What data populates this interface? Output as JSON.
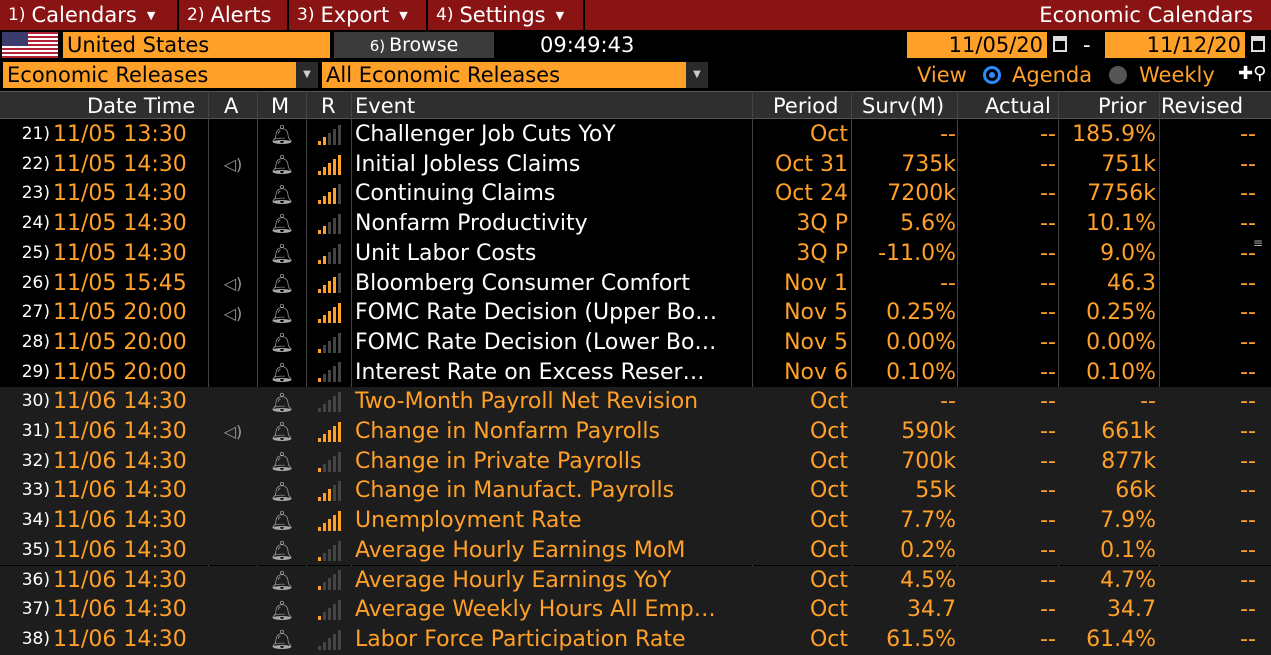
{
  "menu": [
    {
      "num": "1)",
      "label": "Calendars"
    },
    {
      "num": "2)",
      "label": "Alerts"
    },
    {
      "num": "3)",
      "label": "Export"
    },
    {
      "num": "4)",
      "label": "Settings"
    }
  ],
  "window_title": "Economic Calendars",
  "country": "United States",
  "browse": {
    "num": "6)",
    "label": "Browse"
  },
  "clock": "09:49:43",
  "date_from": "11/05/20",
  "date_to": "11/12/20",
  "date_sep": "-",
  "category_select": "Economic Releases",
  "release_select": "All Economic Releases",
  "view": {
    "label": "View",
    "agenda": "Agenda",
    "weekly": "Weekly"
  },
  "columns": {
    "datetime": "Date Time",
    "a": "A",
    "m": "M",
    "r": "R",
    "event": "Event",
    "period": "Period",
    "surv": "Surv(M)",
    "actual": "Actual",
    "prior": "Prior",
    "revised": "Revised"
  },
  "colors": {
    "accent": "#ffa028",
    "menubar": "#8a1414"
  },
  "rows": [
    {
      "idx": "21)",
      "dt": "11/05 13:30",
      "audio": false,
      "rel": 2,
      "event": "Challenger Job Cuts YoY",
      "period": "Oct",
      "surv": "--",
      "actual": "--",
      "prior": "185.9%",
      "revised": "--",
      "group": 1
    },
    {
      "idx": "22)",
      "dt": "11/05 14:30",
      "audio": true,
      "rel": 5,
      "event": "Initial Jobless Claims",
      "period": "Oct 31",
      "surv": "735k",
      "actual": "--",
      "prior": "751k",
      "revised": "--",
      "group": 1
    },
    {
      "idx": "23)",
      "dt": "11/05 14:30",
      "audio": false,
      "rel": 4,
      "event": "Continuing Claims",
      "period": "Oct 24",
      "surv": "7200k",
      "actual": "--",
      "prior": "7756k",
      "revised": "--",
      "group": 1
    },
    {
      "idx": "24)",
      "dt": "11/05 14:30",
      "audio": false,
      "rel": 2,
      "event": "Nonfarm Productivity",
      "period": "3Q P",
      "surv": "5.6%",
      "actual": "--",
      "prior": "10.1%",
      "revised": "--",
      "group": 1
    },
    {
      "idx": "25)",
      "dt": "11/05 14:30",
      "audio": false,
      "rel": 2,
      "event": "Unit Labor Costs",
      "period": "3Q P",
      "surv": "-11.0%",
      "actual": "--",
      "prior": "9.0%",
      "revised": "--",
      "group": 1
    },
    {
      "idx": "26)",
      "dt": "11/05 15:45",
      "audio": true,
      "rel": 4,
      "event": "Bloomberg Consumer Comfort",
      "period": "Nov 1",
      "surv": "--",
      "actual": "--",
      "prior": "46.3",
      "revised": "--",
      "group": 1
    },
    {
      "idx": "27)",
      "dt": "11/05 20:00",
      "audio": true,
      "rel": 5,
      "event": "FOMC Rate Decision (Upper Bo…",
      "period": "Nov 5",
      "surv": "0.25%",
      "actual": "--",
      "prior": "0.25%",
      "revised": "--",
      "group": 1
    },
    {
      "idx": "28)",
      "dt": "11/05 20:00",
      "audio": false,
      "rel": 1,
      "event": "FOMC Rate Decision (Lower Bo…",
      "period": "Nov 5",
      "surv": "0.00%",
      "actual": "--",
      "prior": "0.00%",
      "revised": "--",
      "group": 1
    },
    {
      "idx": "29)",
      "dt": "11/05 20:00",
      "audio": false,
      "rel": 1,
      "event": "Interest Rate on Excess Reser…",
      "period": "Nov 6",
      "surv": "0.10%",
      "actual": "--",
      "prior": "0.10%",
      "revised": "--",
      "group": 1
    },
    {
      "idx": "30)",
      "dt": "11/06 14:30",
      "audio": false,
      "rel": 0,
      "event": "Two-Month Payroll Net Revision",
      "period": "Oct",
      "surv": "--",
      "actual": "--",
      "prior": "--",
      "revised": "--",
      "group": 2
    },
    {
      "idx": "31)",
      "dt": "11/06 14:30",
      "audio": true,
      "rel": 5,
      "event": "Change in Nonfarm Payrolls",
      "period": "Oct",
      "surv": "590k",
      "actual": "--",
      "prior": "661k",
      "revised": "--",
      "group": 2
    },
    {
      "idx": "32)",
      "dt": "11/06 14:30",
      "audio": false,
      "rel": 1,
      "event": "Change in Private Payrolls",
      "period": "Oct",
      "surv": "700k",
      "actual": "--",
      "prior": "877k",
      "revised": "--",
      "group": 2
    },
    {
      "idx": "33)",
      "dt": "11/06 14:30",
      "audio": false,
      "rel": 3,
      "event": "Change in Manufact. Payrolls",
      "period": "Oct",
      "surv": "55k",
      "actual": "--",
      "prior": "66k",
      "revised": "--",
      "group": 2
    },
    {
      "idx": "34)",
      "dt": "11/06 14:30",
      "audio": false,
      "rel": 5,
      "event": "Unemployment Rate",
      "period": "Oct",
      "surv": "7.7%",
      "actual": "--",
      "prior": "7.9%",
      "revised": "--",
      "group": 2
    },
    {
      "idx": "35)",
      "dt": "11/06 14:30",
      "audio": false,
      "rel": 1,
      "event": "Average Hourly Earnings MoM",
      "period": "Oct",
      "surv": "0.2%",
      "actual": "--",
      "prior": "0.1%",
      "revised": "--",
      "group": 2
    },
    {
      "idx": "36)",
      "dt": "11/06 14:30",
      "audio": false,
      "rel": 1,
      "event": "Average Hourly Earnings YoY",
      "period": "Oct",
      "surv": "4.5%",
      "actual": "--",
      "prior": "4.7%",
      "revised": "--",
      "group": 2
    },
    {
      "idx": "37)",
      "dt": "11/06 14:30",
      "audio": false,
      "rel": 1,
      "event": "Average Weekly Hours All Emp…",
      "period": "Oct",
      "surv": "34.7",
      "actual": "--",
      "prior": "34.7",
      "revised": "--",
      "group": 2
    },
    {
      "idx": "38)",
      "dt": "11/06 14:30",
      "audio": false,
      "rel": 0,
      "event": "Labor Force Participation Rate",
      "period": "Oct",
      "surv": "61.5%",
      "actual": "--",
      "prior": "61.4%",
      "revised": "--",
      "group": 2
    }
  ]
}
